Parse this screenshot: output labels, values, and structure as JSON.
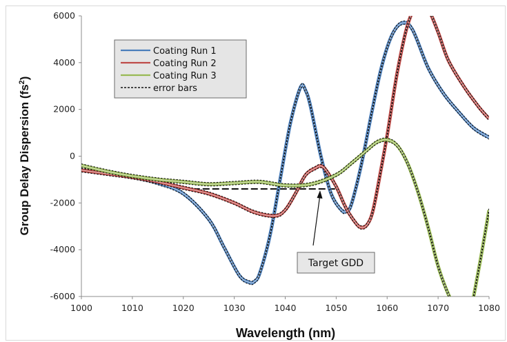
{
  "chart_data": {
    "type": "line",
    "title": "",
    "xlabel": "Wavelength (nm)",
    "ylabel_prefix": "Group Delay Dispersion (fs",
    "ylabel_sup": "2",
    "ylabel_suffix": ")",
    "xlim": [
      1000,
      1080
    ],
    "ylim": [
      -6000,
      6000
    ],
    "x_ticks": [
      1000,
      1010,
      1020,
      1030,
      1040,
      1050,
      1060,
      1070,
      1080
    ],
    "y_ticks": [
      -6000,
      -4000,
      -2000,
      0,
      2000,
      4000,
      6000
    ],
    "grid": {
      "horizontal": false,
      "vertical": false
    },
    "legend_placement": "top-left",
    "series": [
      {
        "name": "Coating Run 1",
        "color": "#4a7ebb",
        "x": [
          1000,
          1005,
          1010,
          1015,
          1020,
          1025,
          1028,
          1031,
          1033,
          1034,
          1035,
          1037,
          1039,
          1041,
          1043,
          1044,
          1045,
          1047,
          1049,
          1051,
          1052,
          1053,
          1055,
          1057,
          1059,
          1061,
          1063,
          1065,
          1068,
          1071,
          1074,
          1077,
          1080
        ],
        "y": [
          -600,
          -750,
          -900,
          -1150,
          -1600,
          -2700,
          -3900,
          -5100,
          -5400,
          -5350,
          -5000,
          -3400,
          -1000,
          1400,
          2950,
          2800,
          2100,
          0,
          -1600,
          -2300,
          -2350,
          -2050,
          -300,
          1900,
          3900,
          5200,
          5700,
          5400,
          3800,
          2700,
          1900,
          1200,
          800
        ]
      },
      {
        "name": "Coating Run 2",
        "color": "#be4b48",
        "x": [
          1000,
          1005,
          1010,
          1015,
          1020,
          1025,
          1030,
          1034,
          1038,
          1040,
          1042,
          1044,
          1046,
          1047,
          1048,
          1050,
          1052,
          1054,
          1055,
          1056,
          1057,
          1058,
          1060,
          1062,
          1064,
          1066,
          1068,
          1070,
          1072,
          1075,
          1078,
          1080
        ],
        "y": [
          -600,
          -750,
          -900,
          -1100,
          -1350,
          -1600,
          -2000,
          -2400,
          -2550,
          -2300,
          -1600,
          -800,
          -500,
          -420,
          -600,
          -1300,
          -2250,
          -2900,
          -3050,
          -2950,
          -2500,
          -1500,
          900,
          3600,
          5600,
          6500,
          6300,
          5300,
          4100,
          3000,
          2100,
          1600
        ]
      },
      {
        "name": "Coating Run 3",
        "color": "#98b954",
        "x": [
          1000,
          1005,
          1010,
          1015,
          1020,
          1025,
          1030,
          1035,
          1040,
          1045,
          1050,
          1053,
          1056,
          1058,
          1060,
          1062,
          1064,
          1066,
          1068,
          1070,
          1072,
          1074,
          1075,
          1076,
          1078,
          1080
        ],
        "y": [
          -400,
          -650,
          -850,
          -1000,
          -1100,
          -1200,
          -1150,
          -1100,
          -1250,
          -1200,
          -800,
          -300,
          250,
          600,
          700,
          450,
          -300,
          -1500,
          -3000,
          -4700,
          -5900,
          -6700,
          -7100,
          -7000,
          -4800,
          -2300
        ]
      }
    ],
    "error_bars_label": "error bars",
    "target_gdd": {
      "label": "Target GDD",
      "value": -1400,
      "x_range": [
        1020,
        1050
      ],
      "arrow_to": [
        1048,
        -1400
      ]
    }
  }
}
